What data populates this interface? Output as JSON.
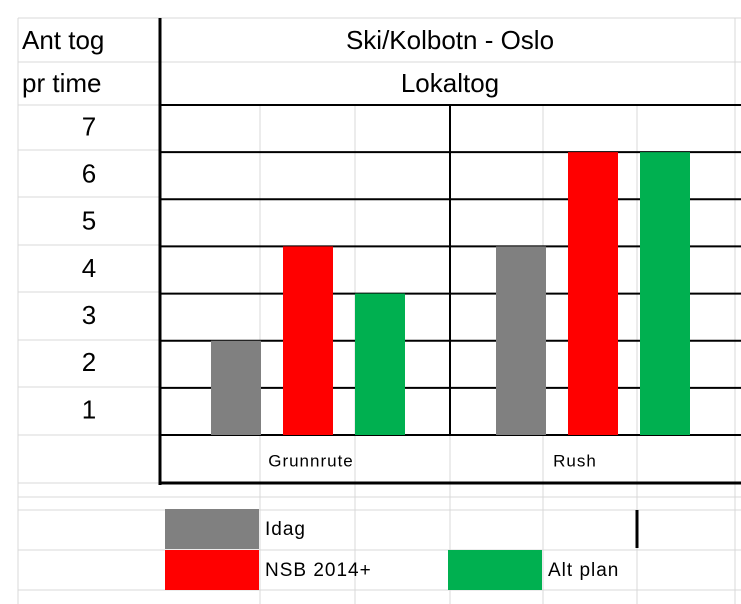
{
  "chart_data": {
    "type": "bar",
    "title": "Ski/Kolbotn - Oslo",
    "subtitle": "Lokaltog",
    "y_label_lines": [
      "Ant tog",
      "pr time"
    ],
    "categories": [
      "Grunnrute",
      "Rush"
    ],
    "series": [
      {
        "name": "Idag",
        "color": "#808080",
        "values": [
          2,
          4
        ]
      },
      {
        "name": "NSB 2014+",
        "color": "#ff0000",
        "values": [
          4,
          6
        ]
      },
      {
        "name": "Alt plan",
        "color": "#00b050",
        "values": [
          3,
          6
        ]
      }
    ],
    "ylim": [
      0,
      7
    ],
    "yticks": [
      1,
      2,
      3,
      4,
      5,
      6,
      7
    ],
    "grid": true
  }
}
